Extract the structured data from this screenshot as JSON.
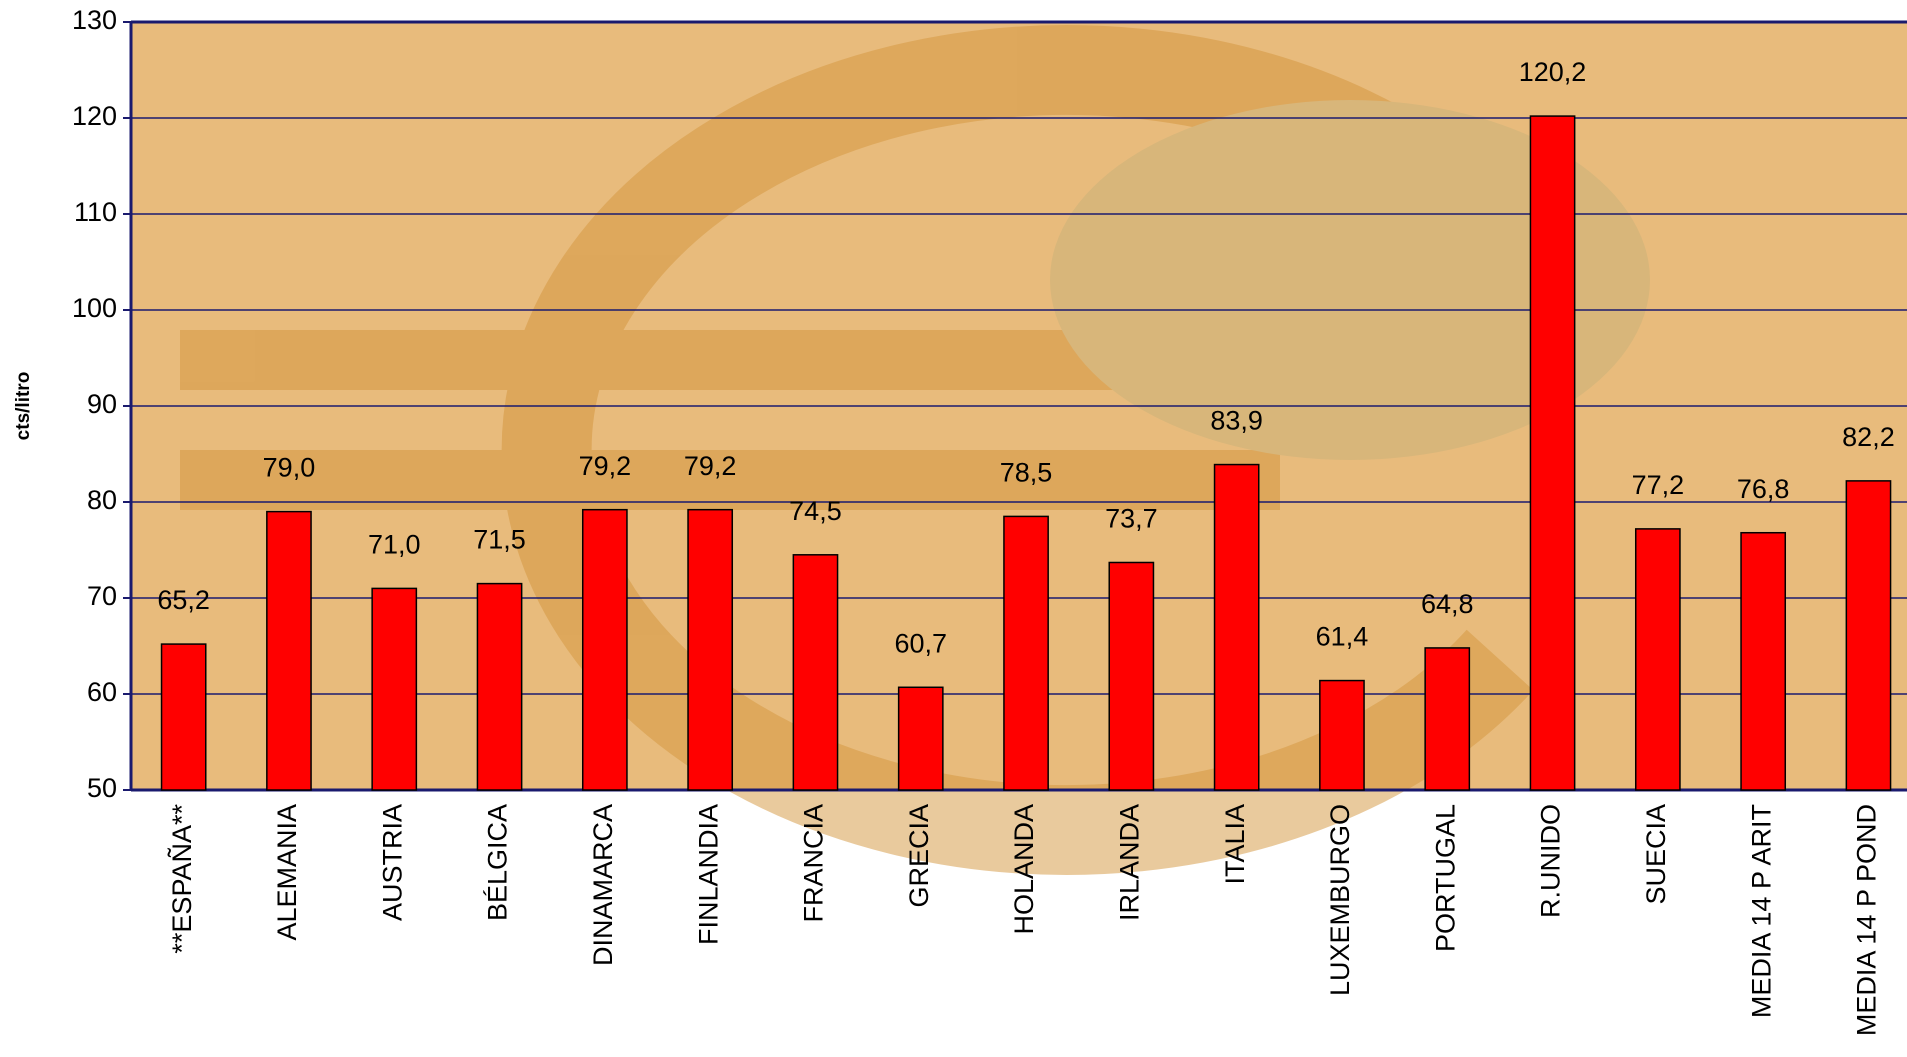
{
  "chart_data": {
    "type": "bar",
    "y_label": "cts/litro",
    "categories": [
      "**ESPAÑA**",
      "ALEMANIA",
      "AUSTRIA",
      "BÉLGICA",
      "DINAMARCA",
      "FINLANDIA",
      "FRANCIA",
      "GRECIA",
      "HOLANDA",
      "IRLANDA",
      "ITALIA",
      "LUXEMBURGO",
      "PORTUGAL",
      "R.UNIDO",
      "SUECIA",
      "MEDIA 14 P ARIT",
      "MEDIA 14 P POND"
    ],
    "values": [
      65.2,
      79.0,
      71.0,
      71.5,
      79.2,
      79.2,
      74.5,
      60.7,
      78.5,
      73.7,
      83.9,
      61.4,
      64.8,
      120.2,
      77.2,
      76.8,
      82.2
    ],
    "value_labels": [
      "65,2",
      "79,0",
      "71,0",
      "71,5",
      "79,2",
      "79,2",
      "74,5",
      "60,7",
      "78,5",
      "73,7",
      "83,9",
      "61,4",
      "64,8",
      "120,2",
      "77,2",
      "76,8",
      "82,2"
    ],
    "color": "#ff0000",
    "ylim": [
      50,
      130
    ],
    "yticks": [
      50,
      60,
      70,
      80,
      90,
      100,
      110,
      120,
      130
    ],
    "grid": true
  }
}
